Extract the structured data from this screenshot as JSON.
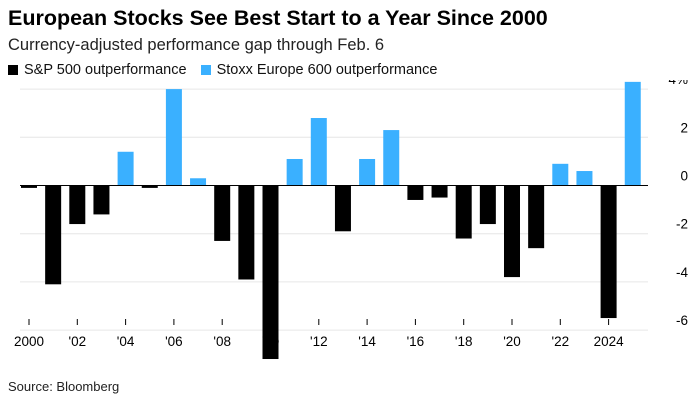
{
  "title": "European Stocks See Best Start to a Year Since 2000",
  "subtitle": "Currency-adjusted performance gap through Feb. 6",
  "source": "Source: Bloomberg",
  "colors": {
    "sp500": "#000000",
    "stoxx": "#3ab0ff",
    "zero_line": "#000000",
    "gridline": "#e6e6e6",
    "tick_text": "#000000"
  },
  "chart_data": {
    "type": "bar",
    "title": "European Stocks See Best Start to a Year Since 2000",
    "subtitle": "Currency-adjusted performance gap through Feb. 6",
    "xlabel": "",
    "ylabel": "",
    "ylim": [
      -7.2,
      4.6
    ],
    "y_ticks": [
      4,
      2,
      0,
      -2,
      -4,
      -6
    ],
    "y_tick_labels": [
      "4%",
      "2",
      "0",
      "-2",
      "-4",
      "-6"
    ],
    "x_ticks": [
      2000,
      2002,
      2004,
      2006,
      2008,
      2010,
      2012,
      2014,
      2016,
      2018,
      2020,
      2022,
      2024
    ],
    "x_tick_labels": [
      "2000",
      "'02",
      "'04",
      "'06",
      "'08",
      "'10",
      "'12",
      "'14",
      "'16",
      "'18",
      "'20",
      "'22",
      "2024"
    ],
    "legend": [
      {
        "name": "S&P 500 outperformance",
        "color": "#000000"
      },
      {
        "name": "Stoxx Europe 600 outperformance",
        "color": "#3ab0ff"
      }
    ],
    "legend_position": "top-left",
    "categories": [
      2000,
      2001,
      2002,
      2003,
      2004,
      2005,
      2006,
      2007,
      2008,
      2009,
      2010,
      2011,
      2012,
      2013,
      2014,
      2015,
      2016,
      2017,
      2018,
      2019,
      2020,
      2021,
      2022,
      2023,
      2024,
      2025
    ],
    "values": [
      -0.1,
      -4.1,
      -1.6,
      -1.2,
      1.4,
      -0.1,
      4.0,
      0.3,
      -2.3,
      -3.9,
      -7.2,
      1.1,
      2.8,
      -1.9,
      1.1,
      2.3,
      -0.6,
      -0.5,
      -2.2,
      -1.6,
      -3.8,
      -2.6,
      0.9,
      0.6,
      -5.5,
      4.3
    ]
  }
}
